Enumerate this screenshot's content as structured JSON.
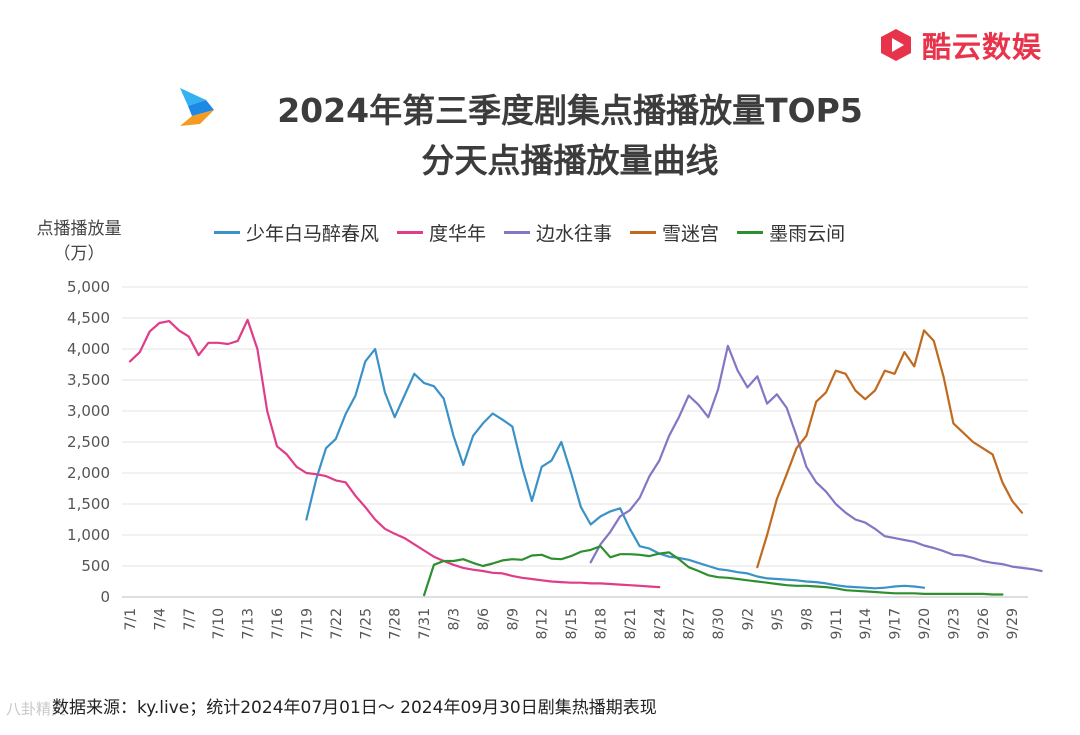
{
  "brand": {
    "name": "酷云数娱"
  },
  "title": {
    "line1": "2024年第三季度剧集点播播放量TOP5",
    "line2": "分天点播播放量曲线"
  },
  "footer": {
    "source": "数据来源：ky.live；统计2024年07月01日～ 2024年09月30日剧集热播期表现",
    "watermark": "八卦精灵"
  },
  "chart_data": {
    "type": "line",
    "ylabel": "点播播放量",
    "yunit": "（万）",
    "ylim": [
      0,
      5000
    ],
    "yticks": [
      0,
      500,
      1000,
      1500,
      2000,
      2500,
      3000,
      3500,
      4000,
      4500,
      5000
    ],
    "ytick_labels": [
      "0",
      "500",
      "1,000",
      "1,500",
      "2,000",
      "2,500",
      "3,000",
      "3,500",
      "4,000",
      "4,500",
      "5,000"
    ],
    "x_days": 92,
    "x_start_label": "7/1",
    "xtick_labels": [
      "7/1",
      "7/4",
      "7/7",
      "7/10",
      "7/13",
      "7/16",
      "7/19",
      "7/22",
      "7/25",
      "7/28",
      "7/31",
      "8/3",
      "8/6",
      "8/9",
      "8/12",
      "8/15",
      "8/18",
      "8/21",
      "8/24",
      "8/27",
      "8/30",
      "9/2",
      "9/5",
      "9/8",
      "9/11",
      "9/14",
      "9/17",
      "9/20",
      "9/23",
      "9/26",
      "9/29"
    ],
    "xtick_index": [
      0,
      3,
      6,
      9,
      12,
      15,
      18,
      21,
      24,
      27,
      30,
      33,
      36,
      39,
      42,
      45,
      48,
      51,
      54,
      57,
      60,
      63,
      66,
      69,
      72,
      75,
      78,
      81,
      84,
      87,
      90
    ],
    "grid": true,
    "legend_position": "top",
    "series": [
      {
        "name": "少年白马醉春风",
        "color": "#3a92c7",
        "start": 18,
        "values": [
          1250,
          1900,
          2400,
          2550,
          2950,
          3250,
          3800,
          4000,
          3300,
          2900,
          3250,
          3600,
          3450,
          3400,
          3200,
          2600,
          2130,
          2600,
          2800,
          2960,
          2860,
          2750,
          2100,
          1550,
          2100,
          2200,
          2500,
          2000,
          1450,
          1170,
          1300,
          1380,
          1430,
          1100,
          820,
          780,
          700,
          650,
          630,
          600,
          550,
          500,
          450,
          430,
          400,
          380,
          330,
          300,
          290,
          280,
          270,
          250,
          240,
          220,
          190,
          170,
          160,
          150,
          140,
          150,
          170,
          180,
          170,
          150
        ]
      },
      {
        "name": "度华年",
        "color": "#e03c88",
        "start": 0,
        "values": [
          3800,
          3950,
          4280,
          4420,
          4450,
          4300,
          4200,
          3900,
          4100,
          4100,
          4080,
          4130,
          4470,
          4000,
          3000,
          2430,
          2300,
          2100,
          2000,
          1980,
          1950,
          1880,
          1850,
          1630,
          1450,
          1250,
          1100,
          1020,
          950,
          850,
          750,
          650,
          580,
          520,
          470,
          440,
          420,
          390,
          380,
          340,
          310,
          290,
          270,
          250,
          240,
          230,
          230,
          220,
          220,
          210,
          200,
          190,
          180,
          170,
          160
        ]
      },
      {
        "name": "边水往事",
        "color": "#8675c4",
        "start": 47,
        "values": [
          560,
          850,
          1050,
          1300,
          1400,
          1600,
          1950,
          2200,
          2600,
          2900,
          3250,
          3100,
          2900,
          3350,
          4050,
          3650,
          3380,
          3560,
          3120,
          3270,
          3050,
          2600,
          2100,
          1850,
          1700,
          1500,
          1360,
          1250,
          1200,
          1100,
          980,
          950,
          920,
          890,
          830,
          790,
          740,
          680,
          670,
          630,
          580,
          550,
          530,
          490,
          470,
          450,
          420
        ]
      },
      {
        "name": "雪迷宫",
        "color": "#c06a1f",
        "start": 64,
        "values": [
          480,
          1000,
          1580,
          1980,
          2400,
          2600,
          3150,
          3300,
          3650,
          3600,
          3330,
          3190,
          3330,
          3650,
          3600,
          3950,
          3720,
          4300,
          4130,
          3550,
          2800,
          2650,
          2500,
          2400,
          2300,
          1850,
          1550,
          1360
        ]
      },
      {
        "name": "墨雨云间",
        "color": "#2e8f2e",
        "start": 30,
        "values": [
          30,
          520,
          580,
          580,
          610,
          550,
          500,
          540,
          590,
          610,
          600,
          670,
          680,
          620,
          610,
          660,
          730,
          760,
          820,
          640,
          690,
          690,
          680,
          660,
          700,
          720,
          610,
          480,
          420,
          350,
          320,
          310,
          290,
          270,
          250,
          230,
          210,
          190,
          180,
          180,
          170,
          160,
          140,
          110,
          100,
          90,
          80,
          70,
          60,
          60,
          60,
          50,
          50,
          50,
          50,
          50,
          50,
          50,
          40,
          40
        ]
      }
    ]
  }
}
